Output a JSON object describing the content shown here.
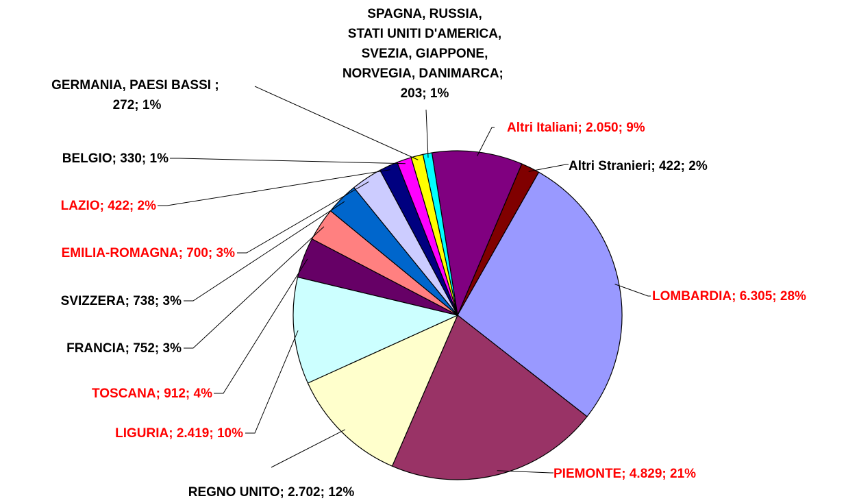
{
  "chart_data": {
    "type": "pie",
    "categories": [
      "Altri Italiani",
      "Altri Stranieri",
      "LOMBARDIA",
      "PIEMONTE",
      "REGNO UNITO",
      "LIGURIA",
      "TOSCANA",
      "FRANCIA",
      "SVIZZERA",
      "EMILIA-ROMAGNA",
      "LAZIO",
      "BELGIO",
      "GERMANIA, PAESI BASSI ",
      "SPAGNA, RUSSIA,\nSTATI UNITI D'AMERICA,\nSVEZIA, GIAPPONE,\nNORVEGIA, DANIMARCA"
    ],
    "values": [
      2050,
      422,
      6305,
      4829,
      2702,
      2419,
      912,
      752,
      738,
      700,
      422,
      330,
      272,
      203
    ],
    "value_labels": [
      "2.050; 9%",
      "422; 2%",
      "6.305; 28%",
      "4.829; 21%",
      "2.702; 12%",
      "2.419; 10%",
      "912; 4%",
      "752; 3%",
      "738; 3%",
      "700; 3%",
      "422; 2%",
      "330; 1%",
      "272; 1%",
      "203; 1%"
    ],
    "label_separator": "; ",
    "colors": [
      "#800080",
      "#800000",
      "#9999ff",
      "#993366",
      "#ffffcc",
      "#ccffff",
      "#660066",
      "#ff8080",
      "#0066cc",
      "#ccccff",
      "#000080",
      "#ff00ff",
      "#ffff00",
      "#00ffff"
    ],
    "label_colors": [
      "#ff0000",
      "#000000",
      "#ff0000",
      "#ff0000",
      "#000000",
      "#ff0000",
      "#ff0000",
      "#000000",
      "#000000",
      "#ff0000",
      "#ff0000",
      "#000000",
      "#000000",
      "#000000"
    ]
  }
}
